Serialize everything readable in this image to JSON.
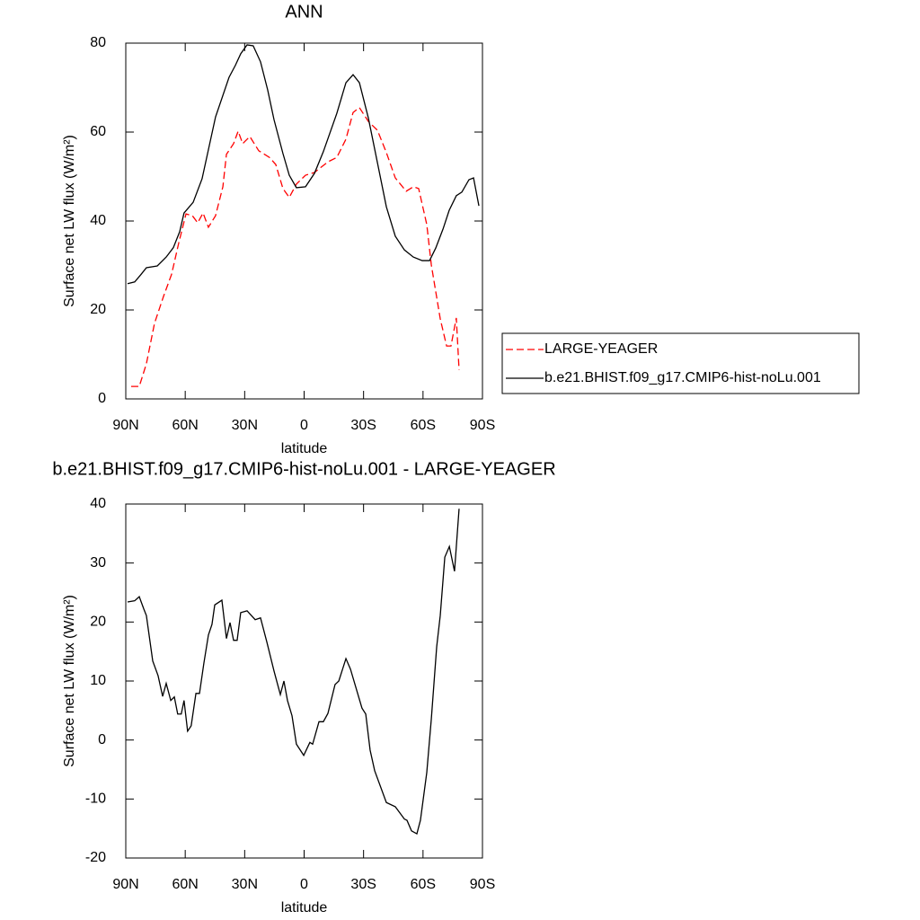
{
  "chart_data": [
    {
      "type": "line",
      "title": "ANN",
      "xlabel": "latitude",
      "ylabel": "Surface net LW flux (W/m²)",
      "xlim": [
        90,
        -90
      ],
      "ylim": [
        0,
        80
      ],
      "xticks": [
        {
          "value": 90,
          "label": "90N"
        },
        {
          "value": 60,
          "label": "60N"
        },
        {
          "value": 30,
          "label": "30N"
        },
        0,
        {
          "value": -30,
          "label": "30S"
        },
        {
          "value": -60,
          "label": "60S"
        },
        {
          "value": -90,
          "label": "90S"
        }
      ],
      "yticks": [
        0,
        20,
        40,
        60,
        80
      ],
      "legend": "right",
      "series": [
        {
          "name": "LARGE-YEAGER",
          "color": "#ff0000",
          "dash": true,
          "x": [
            87.3,
            83.2,
            79.6,
            75.5,
            71,
            66.9,
            63.2,
            59.6,
            56.4,
            53.7,
            51,
            48.3,
            44.7,
            41,
            39.2,
            35.6,
            33.3,
            31,
            27.4,
            22.9,
            17.5,
            14.3,
            10.7,
            7.5,
            3.9,
            -0.7,
            -5.2,
            -12,
            -16.5,
            -21.1,
            -24.7,
            -27.9,
            -32.4,
            -37,
            -41.5,
            -46,
            -51.5,
            -55.1,
            -57.8,
            -61.9,
            -64.2,
            -68.7,
            -71.9,
            -74.1,
            -76.8,
            -78.2
          ],
          "values": [
            2.8,
            2.8,
            7.9,
            17,
            23,
            28,
            35.2,
            41.6,
            41.2,
            39.6,
            41.8,
            38.6,
            41.2,
            47.7,
            55,
            57.4,
            60.2,
            57.4,
            59,
            55.8,
            54.3,
            52.7,
            47.3,
            45.3,
            48.3,
            50.3,
            50.9,
            53.3,
            54.3,
            58.4,
            64.4,
            65.5,
            62.4,
            60.4,
            55.4,
            49.7,
            46.7,
            47.7,
            47.3,
            39.2,
            30.1,
            18,
            11.9,
            11.9,
            18.2,
            6.5
          ]
        },
        {
          "name": "b.e21.BHIST.f09_g17.CMIP6-hist-noLu.001",
          "color": "#000000",
          "dash": false,
          "x": [
            89.1,
            85.5,
            82.3,
            79.6,
            74.1,
            69.6,
            66,
            62.8,
            60.6,
            56,
            51.5,
            44.7,
            37.9,
            34.7,
            32,
            28.8,
            25.7,
            22,
            18.4,
            15.2,
            10.7,
            7.5,
            3.9,
            -0.7,
            -5.2,
            -9.7,
            -16.5,
            -21.1,
            -24.7,
            -27.9,
            -32.4,
            -37,
            -41.5,
            -46,
            -50.6,
            -55.1,
            -59.6,
            -63.3,
            -66.4,
            -70.1,
            -73.2,
            -76.8,
            -79.6,
            -83.2,
            -85.5,
            -88.2
          ],
          "values": [
            25.9,
            26.3,
            28,
            29.5,
            29.9,
            31.9,
            34,
            37.6,
            41.8,
            44.2,
            49.5,
            63.4,
            72.3,
            75,
            77.6,
            79.6,
            79.4,
            75.8,
            69.5,
            62.8,
            55.2,
            50.3,
            47.5,
            47.7,
            50.7,
            55.6,
            64.2,
            71.1,
            72.9,
            71.1,
            63.2,
            53.1,
            43.2,
            36.6,
            33.5,
            31.9,
            31.1,
            31.1,
            33.9,
            38.2,
            42.4,
            45.7,
            46.5,
            49.3,
            49.7,
            43.4
          ]
        }
      ]
    },
    {
      "type": "line",
      "title": "b.e21.BHIST.f09_g17.CMIP6-hist-noLu.001 - LARGE-YEAGER",
      "xlabel": "latitude",
      "ylabel": "Surface net LW flux (W/m²)",
      "xlim": [
        90,
        -90
      ],
      "ylim": [
        -20,
        40
      ],
      "xticks": [
        {
          "value": 90,
          "label": "90N"
        },
        {
          "value": 60,
          "label": "60N"
        },
        {
          "value": 30,
          "label": "30N"
        },
        0,
        {
          "value": -30,
          "label": "30S"
        },
        {
          "value": -60,
          "label": "60S"
        },
        {
          "value": -90,
          "label": "90S"
        }
      ],
      "yticks": [
        -20,
        -10,
        0,
        10,
        20,
        30,
        40
      ],
      "series": [
        {
          "color": "#000000",
          "dash": false,
          "x": [
            89.1,
            85.5,
            83.2,
            80.9,
            79.6,
            76.4,
            73.7,
            71.4,
            69.6,
            67.3,
            65.5,
            63.8,
            62,
            60.6,
            58.8,
            57,
            54.6,
            52.8,
            50.6,
            48.3,
            46.5,
            45.1,
            41.5,
            39.2,
            37.4,
            35.6,
            33.8,
            32,
            28.8,
            24.7,
            22,
            18.8,
            15.2,
            12,
            10.2,
            8.4,
            6.1,
            3.9,
            0.2,
            -2.9,
            -4.3,
            -7.5,
            -9.7,
            -12,
            -15.6,
            -17.5,
            -21.1,
            -23.4,
            -29.2,
            -31.1,
            -33.3,
            -35.6,
            -41.5,
            -46,
            -50.6,
            -51.9,
            -54.2,
            -56.9,
            -58.7,
            -61.9,
            -64.2,
            -66.9,
            -68.7,
            -71,
            -73.3,
            -75.9,
            -78.2
          ],
          "values": [
            23.4,
            23.6,
            24.3,
            22.2,
            21.1,
            13.4,
            10.9,
            7.4,
            9.6,
            6.7,
            7.3,
            4.4,
            4.4,
            6.7,
            1.5,
            2.4,
            7.9,
            7.9,
            13,
            17.8,
            19.6,
            22.9,
            23.7,
            17.2,
            19.9,
            16.9,
            16.9,
            21.6,
            21.9,
            20.4,
            20.7,
            16.6,
            11.7,
            7.7,
            10,
            6.7,
            4.1,
            -0.7,
            -2.6,
            -0.4,
            -0.7,
            3.1,
            3.1,
            4.5,
            9.4,
            10,
            13.8,
            12,
            5.4,
            4.4,
            -1.7,
            -5.2,
            -10.6,
            -11.3,
            -13.4,
            -13.6,
            -15.4,
            -15.9,
            -13.6,
            -5.5,
            3.6,
            15.8,
            21.1,
            31,
            32.8,
            28.6,
            39.2
          ]
        }
      ]
    }
  ]
}
